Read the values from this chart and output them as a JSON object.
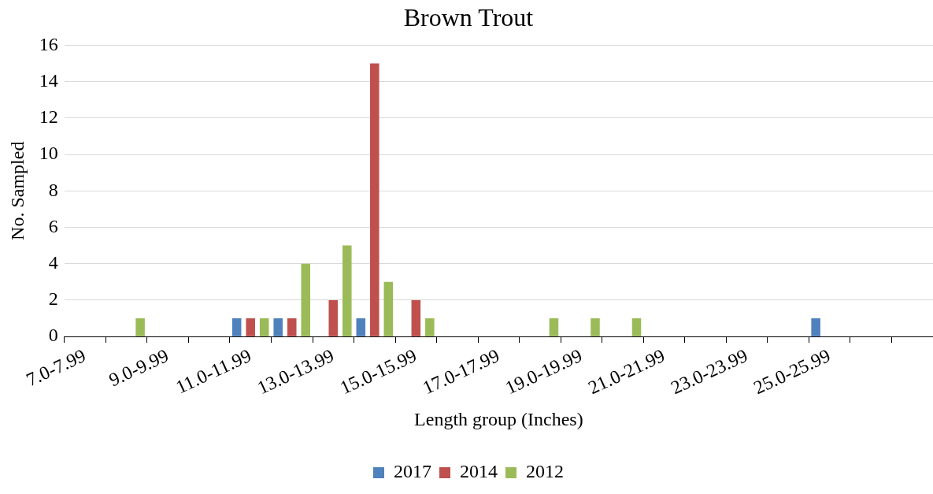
{
  "chart_data": {
    "type": "bar",
    "title": "Brown Trout",
    "xlabel": "Length group (Inches)",
    "ylabel": "No. Sampled",
    "categories": [
      "7.0-7.99",
      null,
      "9.0-9.99",
      null,
      "11.0-11.99",
      null,
      "13.0-13.99",
      null,
      "15.0-15.99",
      null,
      "17.0-17.99",
      null,
      "19.0-19.99",
      null,
      "21.0-21.99",
      null,
      "23.0-23.99",
      null,
      "25.0-25.99",
      null,
      null
    ],
    "series": [
      {
        "name": "2017",
        "color": "#4f81bd",
        "values": [
          0,
          0,
          0,
          0,
          1,
          1,
          0,
          1,
          0,
          0,
          0,
          0,
          0,
          0,
          0,
          0,
          0,
          0,
          1,
          0,
          0
        ]
      },
      {
        "name": "2014",
        "color": "#c0504d",
        "values": [
          0,
          0,
          0,
          0,
          1,
          1,
          2,
          15,
          2,
          0,
          0,
          0,
          0,
          0,
          0,
          0,
          0,
          0,
          0,
          0,
          0
        ]
      },
      {
        "name": "2012",
        "color": "#9bbb59",
        "values": [
          0,
          1,
          0,
          0,
          1,
          4,
          5,
          3,
          1,
          0,
          0,
          1,
          1,
          1,
          0,
          0,
          0,
          0,
          0,
          0,
          0
        ]
      }
    ],
    "ylim": [
      0,
      16
    ],
    "yticks": [
      0,
      2,
      4,
      6,
      8,
      10,
      12,
      14,
      16
    ],
    "grid": "y",
    "legend": "bottom"
  }
}
